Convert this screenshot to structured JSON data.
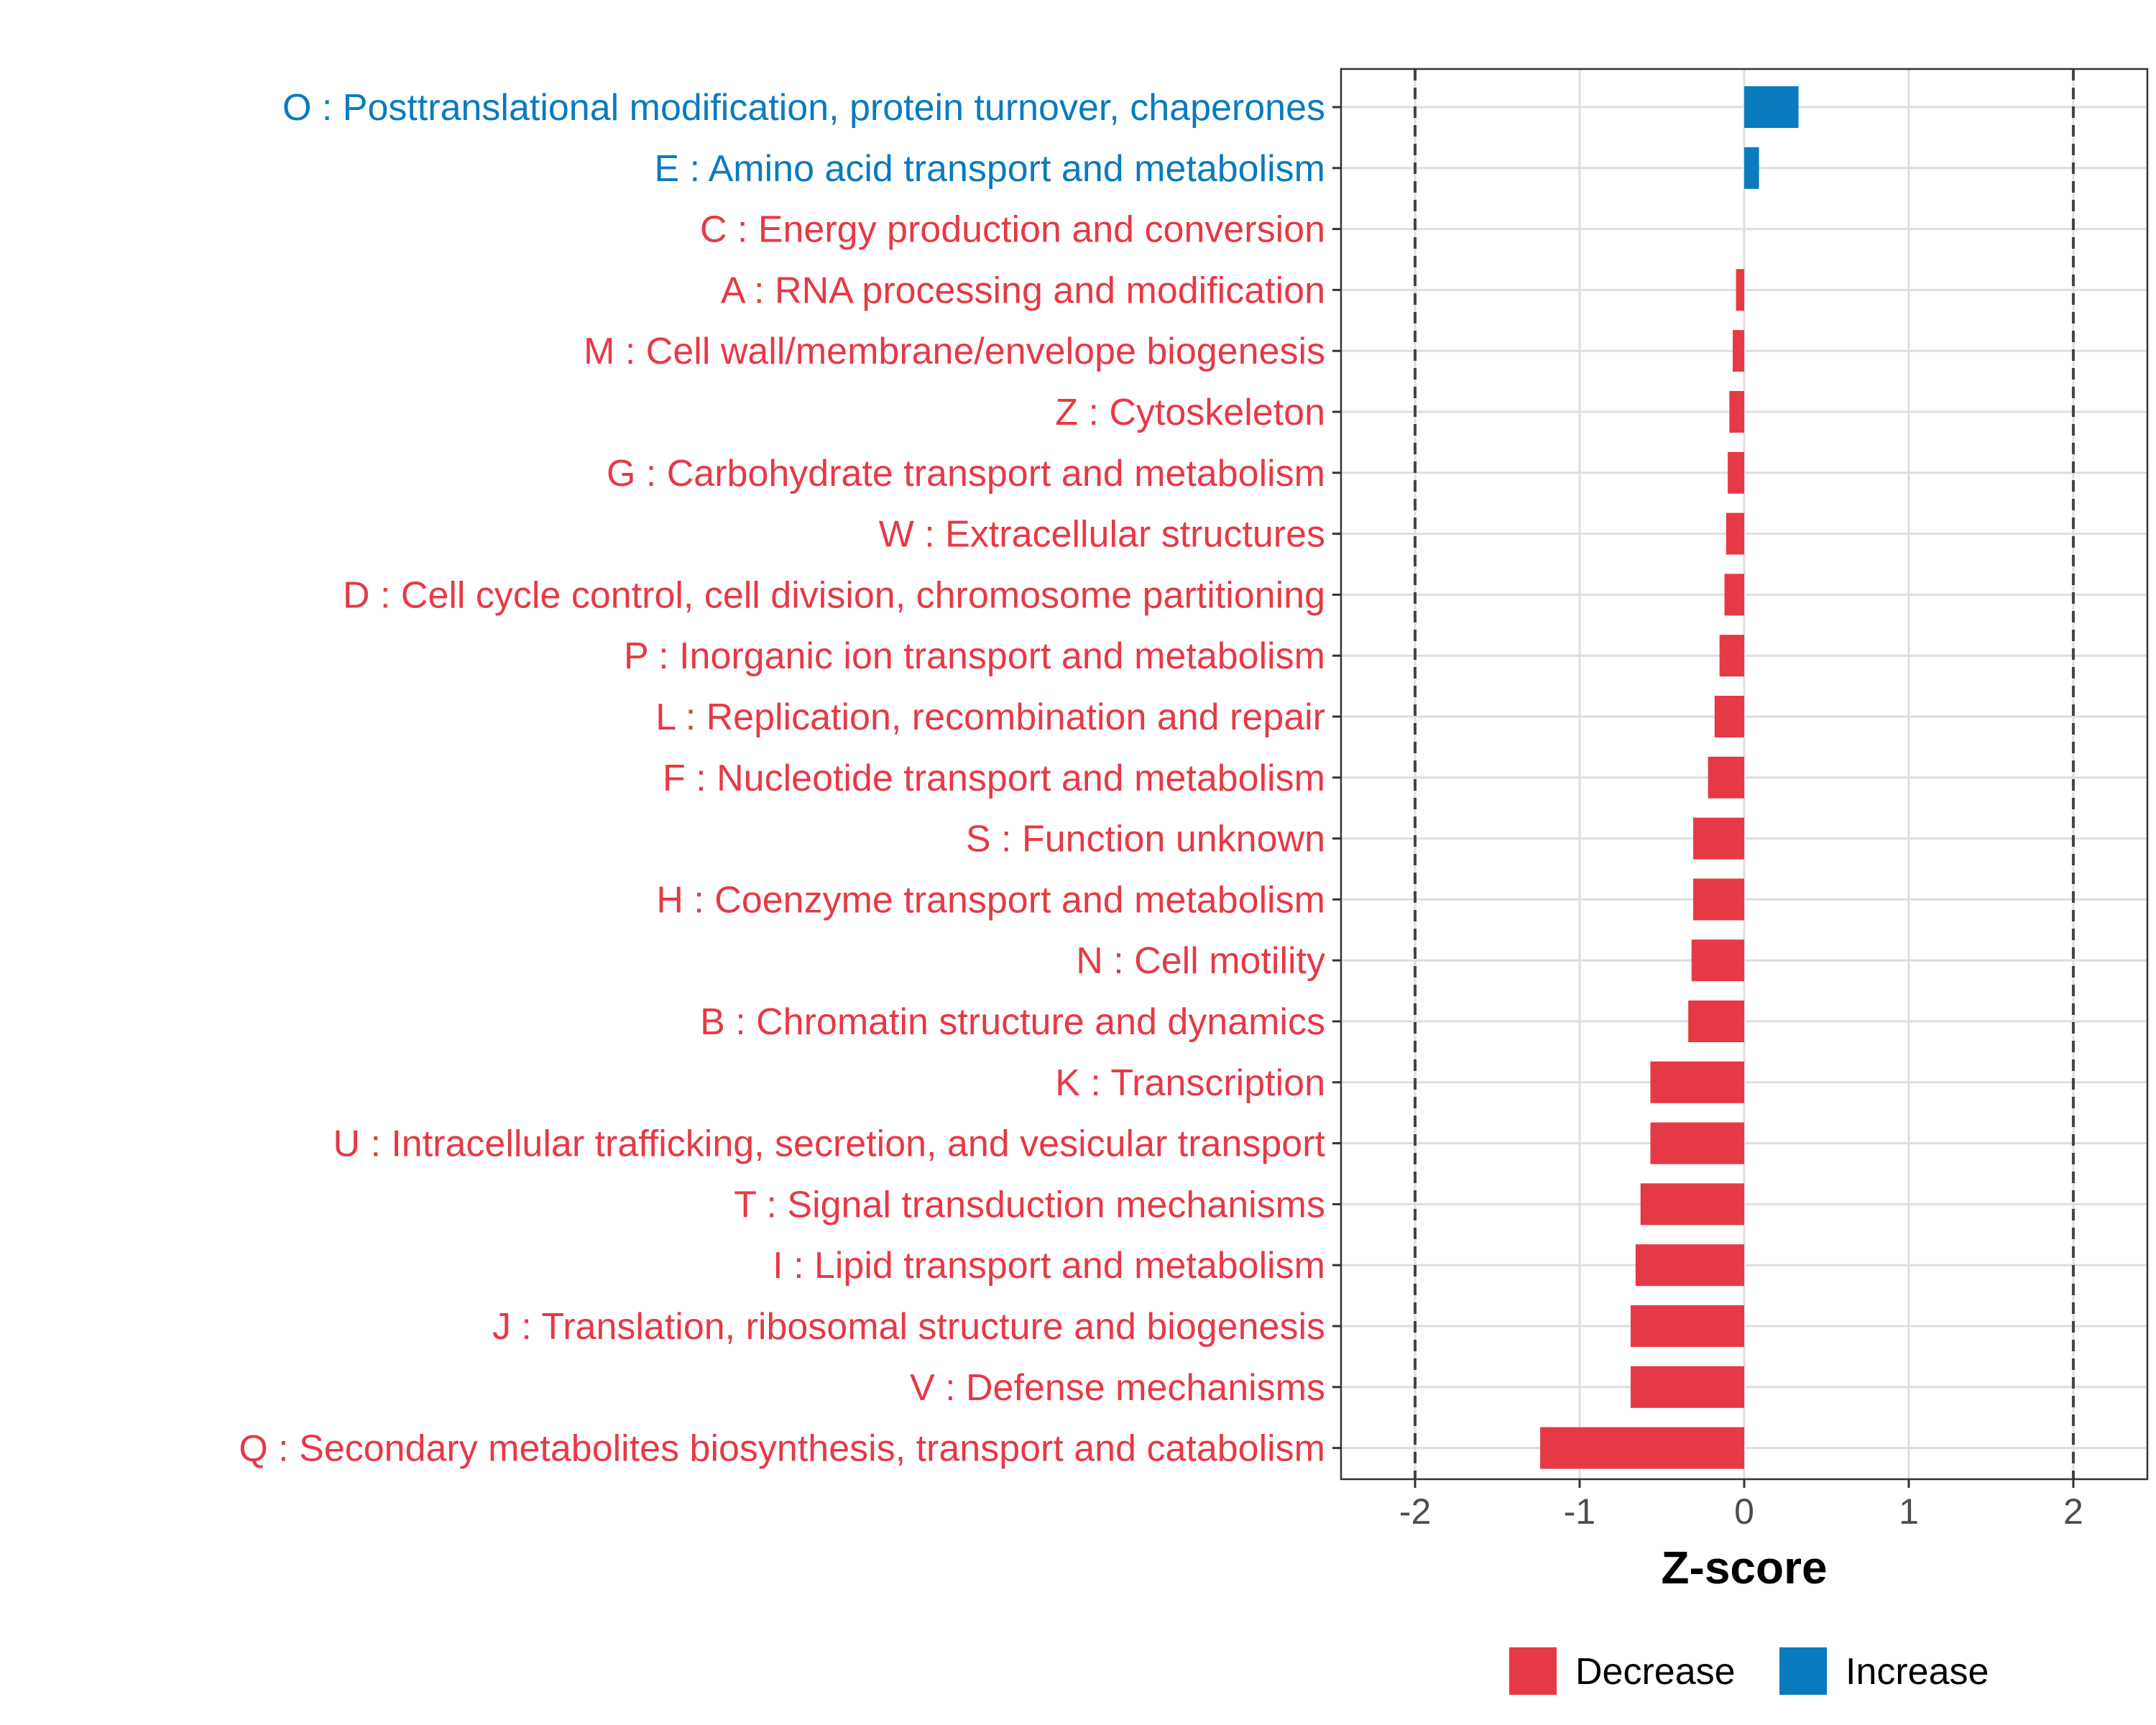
{
  "chart_data": {
    "type": "bar",
    "orientation": "horizontal",
    "xlabel": "Z-score",
    "xlim": [
      -2.45,
      2.45
    ],
    "xticks": [
      -2,
      -1,
      0,
      1,
      2
    ],
    "xtick_labels": [
      "-2",
      "-1",
      "0",
      "1",
      "2"
    ],
    "reference_lines": [
      -2,
      2
    ],
    "grid": true,
    "legend_position": "bottom",
    "legend": [
      {
        "name": "Decrease",
        "color": "#E63946"
      },
      {
        "name": "Increase",
        "color": "#0A7BBE"
      }
    ],
    "categories": [
      "O : Posttranslational modification, protein turnover, chaperones",
      "E : Amino acid transport and metabolism",
      "C : Energy production and conversion",
      "A : RNA processing and modification",
      "M : Cell wall/membrane/envelope biogenesis",
      "Z : Cytoskeleton",
      "G : Carbohydrate transport and metabolism",
      "W : Extracellular structures",
      "D : Cell cycle control, cell division, chromosome partitioning",
      "P : Inorganic ion transport and metabolism",
      "L : Replication, recombination and repair",
      "F : Nucleotide transport and metabolism",
      "S : Function unknown",
      "H : Coenzyme transport and metabolism",
      "N : Cell motility",
      "B : Chromatin structure and dynamics",
      "K : Transcription",
      "U : Intracellular trafficking, secretion, and vesicular transport",
      "T : Signal transduction mechanisms",
      "I : Lipid transport and metabolism",
      "J : Translation, ribosomal structure and biogenesis",
      "V : Defense mechanisms",
      "Q : Secondary metabolites biosynthesis, transport and catabolism"
    ],
    "values": [
      0.33,
      0.09,
      0.0,
      -0.05,
      -0.07,
      -0.09,
      -0.1,
      -0.11,
      -0.12,
      -0.15,
      -0.18,
      -0.22,
      -0.31,
      -0.31,
      -0.32,
      -0.34,
      -0.57,
      -0.57,
      -0.63,
      -0.66,
      -0.69,
      -0.69,
      -1.24
    ],
    "groups": [
      "Increase",
      "Increase",
      "Decrease",
      "Decrease",
      "Decrease",
      "Decrease",
      "Decrease",
      "Decrease",
      "Decrease",
      "Decrease",
      "Decrease",
      "Decrease",
      "Decrease",
      "Decrease",
      "Decrease",
      "Decrease",
      "Decrease",
      "Decrease",
      "Decrease",
      "Decrease",
      "Decrease",
      "Decrease",
      "Decrease"
    ]
  }
}
